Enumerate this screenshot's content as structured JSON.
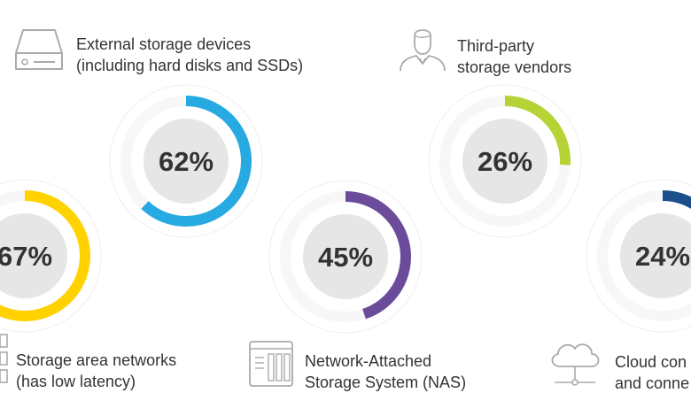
{
  "chart_data": {
    "type": "donut",
    "series": [
      {
        "label_line1": "Storage area networks",
        "label_line2": "(has low latency)",
        "value": 67,
        "display": "67%",
        "color": "#ffd200",
        "icon": "storage-rack-icon"
      },
      {
        "label_line1": "External storage devices",
        "label_line2": "(including hard disks and SSDs)",
        "value": 62,
        "display": "62%",
        "color": "#27aae1",
        "icon": "hard-drive-icon"
      },
      {
        "label_line1": "Network-Attached",
        "label_line2": "Storage System (NAS)",
        "value": 45,
        "display": "45%",
        "color": "#6b4c9a",
        "icon": "nas-device-icon"
      },
      {
        "label_line1": "Third-party",
        "label_line2": "storage vendors",
        "value": 26,
        "display": "26%",
        "color": "#b5d334",
        "icon": "person-icon"
      },
      {
        "label_line1": "Cloud con",
        "label_line2": "and conne",
        "value": 24,
        "display": "24%",
        "color": "#1a4f8b",
        "icon": "cloud-icon"
      }
    ]
  },
  "colors": {
    "track": "#dcdcdc",
    "center": "#e6e6e6",
    "text": "#333333",
    "icon": "#aaaaaa"
  }
}
